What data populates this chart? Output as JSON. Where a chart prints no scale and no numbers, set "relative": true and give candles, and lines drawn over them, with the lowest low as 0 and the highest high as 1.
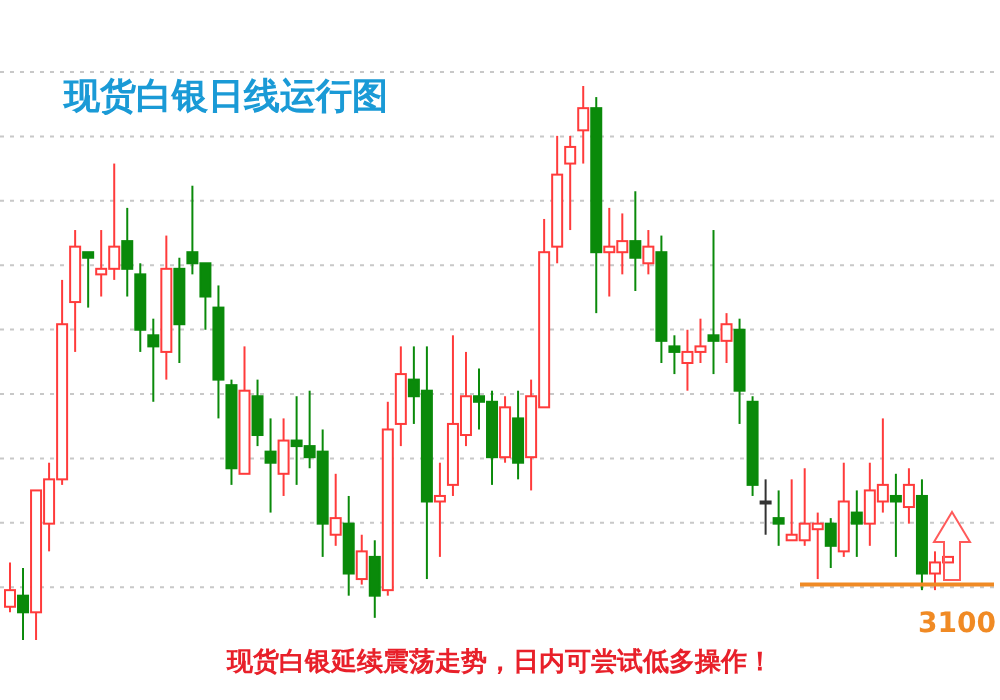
{
  "chart_data": {
    "type": "candlestick",
    "title": "现货白银日线运行图",
    "annotations": [
      "现货白银延续震荡走势，日内可尝试低多操作！",
      "3100"
    ],
    "relative": true,
    "grid": "y",
    "categories": [
      null,
      null,
      null,
      null,
      null,
      null,
      null,
      null,
      null,
      null,
      null,
      null,
      null,
      null,
      null,
      null,
      null,
      null,
      null,
      null,
      null,
      null,
      null,
      null,
      null,
      null,
      null,
      null,
      null,
      null,
      null,
      null,
      null,
      null,
      null,
      null,
      null,
      null,
      null,
      null,
      null,
      null,
      null,
      null,
      null,
      null,
      null,
      null,
      null,
      null,
      null,
      null,
      null,
      null,
      null,
      null,
      null,
      null,
      null,
      null,
      null,
      null,
      null,
      null,
      null,
      null,
      null,
      null,
      null,
      null,
      null,
      null,
      null
    ],
    "ohlc": [
      [
        0.06,
        0.14,
        0.05,
        0.09
      ],
      [
        0.08,
        0.13,
        0,
        0.05
      ],
      [
        0.05,
        0.27,
        0,
        0.27
      ],
      [
        0.21,
        0.32,
        0.16,
        0.29
      ],
      [
        0.29,
        0.65,
        0.28,
        0.57
      ],
      [
        0.61,
        0.74,
        0.52,
        0.71
      ],
      [
        0.7,
        0.7,
        0.6,
        0.69
      ],
      [
        0.66,
        0.74,
        0.62,
        0.67
      ],
      [
        0.67,
        0.86,
        0.65,
        0.71
      ],
      [
        0.72,
        0.78,
        0.62,
        0.67
      ],
      [
        0.66,
        0.68,
        0.52,
        0.56
      ],
      [
        0.55,
        0.58,
        0.43,
        0.53
      ],
      [
        0.52,
        0.73,
        0.47,
        0.67
      ],
      [
        0.67,
        0.69,
        0.5,
        0.57
      ],
      [
        0.7,
        0.82,
        0.66,
        0.68
      ],
      [
        0.68,
        0.68,
        0.56,
        0.62
      ],
      [
        0.6,
        0.64,
        0.4,
        0.47
      ],
      [
        0.46,
        0.47,
        0.28,
        0.31
      ],
      [
        0.3,
        0.53,
        0.3,
        0.45
      ],
      [
        0.44,
        0.47,
        0.35,
        0.37
      ],
      [
        0.34,
        0.4,
        0.23,
        0.32
      ],
      [
        0.3,
        0.4,
        0.26,
        0.36
      ],
      [
        0.36,
        0.44,
        0.28,
        0.35
      ],
      [
        0.35,
        0.45,
        0.31,
        0.33
      ],
      [
        0.34,
        0.38,
        0.15,
        0.21
      ],
      [
        0.19,
        0.3,
        0.17,
        0.22
      ],
      [
        0.21,
        0.26,
        0.08,
        0.12
      ],
      [
        0.11,
        0.19,
        0.1,
        0.16
      ],
      [
        0.15,
        0.18,
        0.04,
        0.08
      ],
      [
        0.09,
        0.43,
        0.08,
        0.38
      ],
      [
        0.39,
        0.53,
        0.35,
        0.48
      ],
      [
        0.47,
        0.53,
        0.39,
        0.44
      ],
      [
        0.45,
        0.53,
        0.11,
        0.25
      ],
      [
        0.25,
        0.32,
        0.15,
        0.26
      ],
      [
        0.28,
        0.55,
        0.26,
        0.39
      ],
      [
        0.37,
        0.52,
        0.35,
        0.44
      ],
      [
        0.44,
        0.49,
        0.38,
        0.43
      ],
      [
        0.43,
        0.45,
        0.28,
        0.33
      ],
      [
        0.33,
        0.44,
        0.32,
        0.42
      ],
      [
        0.4,
        0.45,
        0.29,
        0.32
      ],
      [
        0.33,
        0.47,
        0.27,
        0.44
      ],
      [
        0.42,
        0.76,
        0.42,
        0.7
      ],
      [
        0.71,
        0.91,
        0.68,
        0.84
      ],
      [
        0.86,
        0.91,
        0.74,
        0.89
      ],
      [
        0.92,
        1,
        0.86,
        0.96
      ],
      [
        0.96,
        0.98,
        0.59,
        0.7
      ],
      [
        0.7,
        0.78,
        0.62,
        0.71
      ],
      [
        0.7,
        0.77,
        0.66,
        0.72
      ],
      [
        0.72,
        0.81,
        0.63,
        0.69
      ],
      [
        0.68,
        0.74,
        0.66,
        0.71
      ],
      [
        0.7,
        0.73,
        0.5,
        0.54
      ],
      [
        0.53,
        0.55,
        0.48,
        0.52
      ],
      [
        0.5,
        0.56,
        0.45,
        0.52
      ],
      [
        0.52,
        0.58,
        0.5,
        0.53
      ],
      [
        0.55,
        0.74,
        0.48,
        0.54
      ],
      [
        0.54,
        0.59,
        0.5,
        0.57
      ],
      [
        0.56,
        0.58,
        0.39,
        0.45
      ],
      [
        0.43,
        0.44,
        0.26,
        0.28
      ],
      [
        0.25,
        0.29,
        0.19,
        0.25
      ],
      [
        0.22,
        0.27,
        0.17,
        0.21
      ],
      [
        0.18,
        0.29,
        0.18,
        0.19
      ],
      [
        0.18,
        0.31,
        0.17,
        0.21
      ],
      [
        0.2,
        0.23,
        0.11,
        0.21
      ],
      [
        0.21,
        0.22,
        0.13,
        0.17
      ],
      [
        0.16,
        0.32,
        0.15,
        0.25
      ],
      [
        0.23,
        0.27,
        0.15,
        0.21
      ],
      [
        0.21,
        0.32,
        0.17,
        0.27
      ],
      [
        0.25,
        0.4,
        0.23,
        0.28
      ],
      [
        0.26,
        0.3,
        0.15,
        0.25
      ],
      [
        0.24,
        0.31,
        0.21,
        0.28
      ],
      [
        0.26,
        0.29,
        0.09,
        0.12
      ],
      [
        0.12,
        0.16,
        0.09,
        0.14
      ],
      [
        0.14,
        0.15,
        0.14,
        0.15
      ]
    ],
    "ref_lines": [
      {
        "axis": "y",
        "value": 0.1,
        "color": "#f08a24"
      }
    ]
  }
}
